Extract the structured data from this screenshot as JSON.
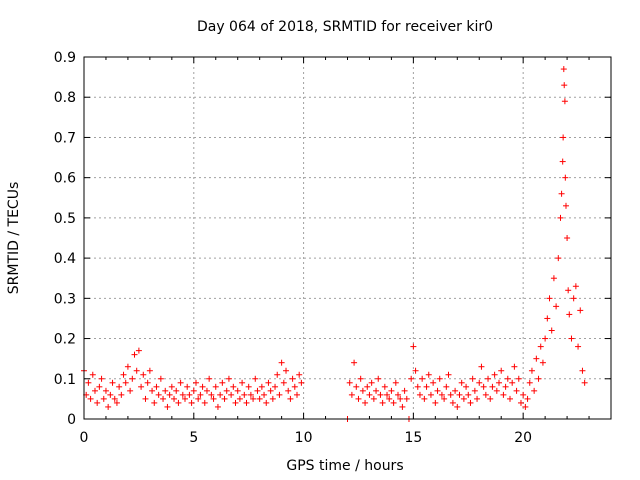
{
  "chart_data": {
    "type": "scatter",
    "title": "Day 064 of 2018, SRMTID for receiver kir0",
    "xlabel": "GPS time / hours",
    "ylabel": "SRMTID / TECUs",
    "xlim": [
      0,
      24
    ],
    "ylim": [
      0,
      0.9
    ],
    "xticks": [
      0,
      5,
      10,
      15,
      20
    ],
    "xtick_labels": [
      "0",
      "5",
      "10",
      "15",
      "20"
    ],
    "yticks": [
      0,
      0.1,
      0.2,
      0.3,
      0.4,
      0.5,
      0.6,
      0.7,
      0.8,
      0.9
    ],
    "ytick_labels": [
      "0",
      "0.1",
      "0.2",
      "0.3",
      "0.4",
      "0.5",
      "0.6",
      "0.7",
      "0.8",
      "0.9"
    ],
    "grid": true,
    "marker": "+",
    "color": "#ff0000",
    "series": [
      {
        "name": "kir0",
        "points": [
          [
            0.0,
            0.12
          ],
          [
            0.1,
            0.06
          ],
          [
            0.2,
            0.09
          ],
          [
            0.3,
            0.05
          ],
          [
            0.4,
            0.11
          ],
          [
            0.5,
            0.07
          ],
          [
            0.6,
            0.04
          ],
          [
            0.7,
            0.08
          ],
          [
            0.8,
            0.1
          ],
          [
            0.9,
            0.05
          ],
          [
            1.0,
            0.07
          ],
          [
            1.1,
            0.03
          ],
          [
            1.2,
            0.06
          ],
          [
            1.3,
            0.09
          ],
          [
            1.4,
            0.05
          ],
          [
            1.5,
            0.04
          ],
          [
            1.6,
            0.08
          ],
          [
            1.7,
            0.06
          ],
          [
            1.8,
            0.11
          ],
          [
            1.9,
            0.09
          ],
          [
            2.0,
            0.13
          ],
          [
            2.1,
            0.07
          ],
          [
            2.2,
            0.1
          ],
          [
            2.3,
            0.16
          ],
          [
            2.4,
            0.12
          ],
          [
            2.5,
            0.17
          ],
          [
            2.6,
            0.08
          ],
          [
            2.7,
            0.11
          ],
          [
            2.8,
            0.05
          ],
          [
            2.9,
            0.09
          ],
          [
            3.0,
            0.12
          ],
          [
            3.1,
            0.07
          ],
          [
            3.2,
            0.04
          ],
          [
            3.3,
            0.08
          ],
          [
            3.4,
            0.06
          ],
          [
            3.5,
            0.1
          ],
          [
            3.6,
            0.05
          ],
          [
            3.7,
            0.07
          ],
          [
            3.8,
            0.03
          ],
          [
            3.9,
            0.06
          ],
          [
            4.0,
            0.08
          ],
          [
            4.1,
            0.05
          ],
          [
            4.2,
            0.07
          ],
          [
            4.3,
            0.04
          ],
          [
            4.4,
            0.09
          ],
          [
            4.5,
            0.06
          ],
          [
            4.6,
            0.05
          ],
          [
            4.7,
            0.08
          ],
          [
            4.8,
            0.06
          ],
          [
            4.9,
            0.04
          ],
          [
            5.0,
            0.07
          ],
          [
            5.1,
            0.09
          ],
          [
            5.2,
            0.05
          ],
          [
            5.3,
            0.06
          ],
          [
            5.4,
            0.08
          ],
          [
            5.5,
            0.04
          ],
          [
            5.6,
            0.07
          ],
          [
            5.7,
            0.1
          ],
          [
            5.8,
            0.06
          ],
          [
            5.9,
            0.05
          ],
          [
            6.0,
            0.08
          ],
          [
            6.1,
            0.03
          ],
          [
            6.2,
            0.06
          ],
          [
            6.3,
            0.09
          ],
          [
            6.4,
            0.05
          ],
          [
            6.5,
            0.07
          ],
          [
            6.6,
            0.1
          ],
          [
            6.7,
            0.06
          ],
          [
            6.8,
            0.08
          ],
          [
            6.9,
            0.04
          ],
          [
            7.0,
            0.07
          ],
          [
            7.1,
            0.05
          ],
          [
            7.2,
            0.09
          ],
          [
            7.3,
            0.06
          ],
          [
            7.4,
            0.04
          ],
          [
            7.5,
            0.08
          ],
          [
            7.6,
            0.06
          ],
          [
            7.7,
            0.05
          ],
          [
            7.8,
            0.1
          ],
          [
            7.9,
            0.07
          ],
          [
            8.0,
            0.05
          ],
          [
            8.1,
            0.08
          ],
          [
            8.2,
            0.06
          ],
          [
            8.3,
            0.04
          ],
          [
            8.4,
            0.09
          ],
          [
            8.5,
            0.07
          ],
          [
            8.6,
            0.05
          ],
          [
            8.7,
            0.08
          ],
          [
            8.8,
            0.11
          ],
          [
            8.9,
            0.06
          ],
          [
            9.0,
            0.14
          ],
          [
            9.1,
            0.09
          ],
          [
            9.2,
            0.12
          ],
          [
            9.3,
            0.07
          ],
          [
            9.4,
            0.05
          ],
          [
            9.5,
            0.1
          ],
          [
            9.6,
            0.08
          ],
          [
            9.7,
            0.06
          ],
          [
            9.8,
            0.11
          ],
          [
            9.9,
            0.09
          ],
          [
            12.0,
            0.0
          ],
          [
            12.1,
            0.09
          ],
          [
            12.2,
            0.06
          ],
          [
            12.3,
            0.14
          ],
          [
            12.4,
            0.08
          ],
          [
            12.5,
            0.05
          ],
          [
            12.6,
            0.1
          ],
          [
            12.7,
            0.07
          ],
          [
            12.8,
            0.04
          ],
          [
            12.9,
            0.08
          ],
          [
            13.0,
            0.06
          ],
          [
            13.1,
            0.09
          ],
          [
            13.2,
            0.05
          ],
          [
            13.3,
            0.07
          ],
          [
            13.4,
            0.1
          ],
          [
            13.5,
            0.06
          ],
          [
            13.6,
            0.04
          ],
          [
            13.7,
            0.08
          ],
          [
            13.8,
            0.06
          ],
          [
            13.9,
            0.05
          ],
          [
            14.0,
            0.07
          ],
          [
            14.1,
            0.04
          ],
          [
            14.2,
            0.09
          ],
          [
            14.3,
            0.06
          ],
          [
            14.4,
            0.05
          ],
          [
            14.5,
            0.03
          ],
          [
            14.6,
            0.07
          ],
          [
            14.7,
            0.05
          ],
          [
            14.8,
            0.0
          ],
          [
            14.9,
            0.1
          ],
          [
            15.0,
            0.18
          ],
          [
            15.1,
            0.12
          ],
          [
            15.2,
            0.08
          ],
          [
            15.3,
            0.06
          ],
          [
            15.4,
            0.1
          ],
          [
            15.5,
            0.05
          ],
          [
            15.6,
            0.08
          ],
          [
            15.7,
            0.11
          ],
          [
            15.8,
            0.06
          ],
          [
            15.9,
            0.09
          ],
          [
            16.0,
            0.04
          ],
          [
            16.1,
            0.07
          ],
          [
            16.2,
            0.1
          ],
          [
            16.3,
            0.06
          ],
          [
            16.4,
            0.05
          ],
          [
            16.5,
            0.08
          ],
          [
            16.6,
            0.11
          ],
          [
            16.7,
            0.06
          ],
          [
            16.8,
            0.04
          ],
          [
            16.9,
            0.07
          ],
          [
            17.0,
            0.03
          ],
          [
            17.1,
            0.06
          ],
          [
            17.2,
            0.09
          ],
          [
            17.3,
            0.05
          ],
          [
            17.4,
            0.08
          ],
          [
            17.5,
            0.06
          ],
          [
            17.6,
            0.04
          ],
          [
            17.7,
            0.1
          ],
          [
            17.8,
            0.07
          ],
          [
            17.9,
            0.05
          ],
          [
            18.0,
            0.09
          ],
          [
            18.1,
            0.13
          ],
          [
            18.2,
            0.08
          ],
          [
            18.3,
            0.06
          ],
          [
            18.4,
            0.1
          ],
          [
            18.5,
            0.05
          ],
          [
            18.6,
            0.08
          ],
          [
            18.7,
            0.11
          ],
          [
            18.8,
            0.07
          ],
          [
            18.9,
            0.09
          ],
          [
            19.0,
            0.12
          ],
          [
            19.1,
            0.06
          ],
          [
            19.2,
            0.08
          ],
          [
            19.3,
            0.1
          ],
          [
            19.4,
            0.05
          ],
          [
            19.5,
            0.09
          ],
          [
            19.6,
            0.13
          ],
          [
            19.7,
            0.07
          ],
          [
            19.8,
            0.1
          ],
          [
            19.9,
            0.04
          ],
          [
            20.0,
            0.06
          ],
          [
            20.1,
            0.03
          ],
          [
            20.2,
            0.05
          ],
          [
            20.3,
            0.09
          ],
          [
            20.4,
            0.12
          ],
          [
            20.5,
            0.07
          ],
          [
            20.6,
            0.15
          ],
          [
            20.7,
            0.1
          ],
          [
            20.8,
            0.18
          ],
          [
            20.9,
            0.14
          ],
          [
            21.0,
            0.2
          ],
          [
            21.1,
            0.25
          ],
          [
            21.2,
            0.3
          ],
          [
            21.3,
            0.22
          ],
          [
            21.4,
            0.35
          ],
          [
            21.5,
            0.28
          ],
          [
            21.6,
            0.4
          ],
          [
            21.7,
            0.5
          ],
          [
            21.75,
            0.56
          ],
          [
            21.8,
            0.64
          ],
          [
            21.82,
            0.7
          ],
          [
            21.85,
            0.87
          ],
          [
            21.87,
            0.83
          ],
          [
            21.9,
            0.79
          ],
          [
            21.92,
            0.6
          ],
          [
            21.95,
            0.53
          ],
          [
            22.0,
            0.45
          ],
          [
            22.05,
            0.32
          ],
          [
            22.1,
            0.26
          ],
          [
            22.2,
            0.2
          ],
          [
            22.3,
            0.3
          ],
          [
            22.4,
            0.33
          ],
          [
            22.5,
            0.18
          ],
          [
            22.6,
            0.27
          ],
          [
            22.7,
            0.12
          ],
          [
            22.8,
            0.09
          ]
        ]
      }
    ]
  }
}
